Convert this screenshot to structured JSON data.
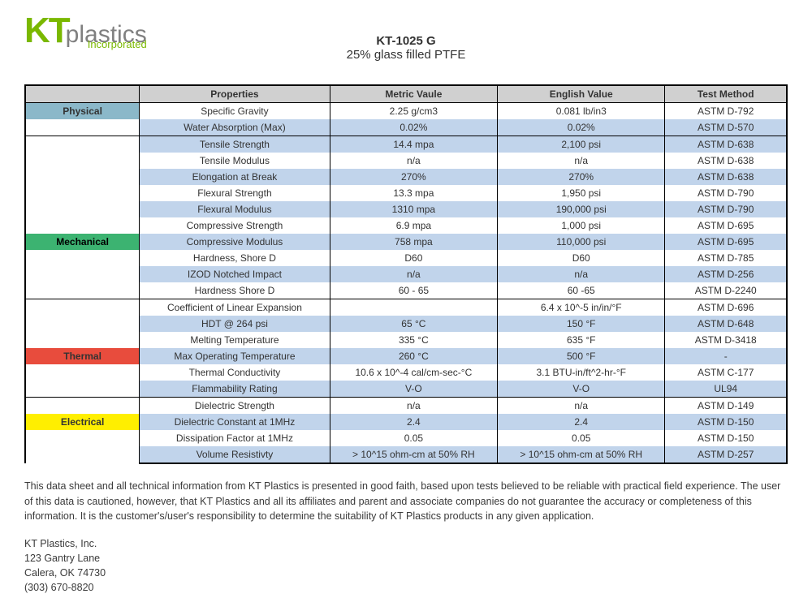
{
  "logo": {
    "kt": "KT",
    "plastics": "plastics",
    "inc": "Incorporated"
  },
  "title": {
    "line1": "KT-1025 G",
    "line2": "25% glass filled PTFE"
  },
  "headers": {
    "properties": "Properties",
    "metric": "Metric Vaule",
    "english": "English Value",
    "method": "Test Method"
  },
  "categories": {
    "physical": "Physical",
    "mechanical": "Mechanical",
    "thermal": "Thermal",
    "electrical": "Electrical"
  },
  "colors": {
    "physical": "#8bb8c9",
    "mechanical": "#3cb371",
    "thermal": "#e84c3d",
    "electrical": "#ffef00",
    "row_even": "#c1d4eb",
    "row_odd": "#ffffff",
    "header_bg": "#d0d0d0",
    "border": "#000000"
  },
  "rows": {
    "r0": {
      "prop": "Specific Gravity",
      "mv": "2.25 g/cm3",
      "ev": "0.081 lb/in3",
      "tm": "ASTM D-792"
    },
    "r1": {
      "prop": "Water Absorption (Max)",
      "mv": "0.02%",
      "ev": "0.02%",
      "tm": "ASTM D-570"
    },
    "r2": {
      "prop": "Tensile Strength",
      "mv": "14.4 mpa",
      "ev": "2,100 psi",
      "tm": "ASTM D-638"
    },
    "r3": {
      "prop": "Tensile Modulus",
      "mv": "n/a",
      "ev": "n/a",
      "tm": "ASTM D-638"
    },
    "r4": {
      "prop": "Elongation at Break",
      "mv": "270%",
      "ev": "270%",
      "tm": "ASTM D-638"
    },
    "r5": {
      "prop": "Flexural Strength",
      "mv": "13.3 mpa",
      "ev": "1,950 psi",
      "tm": "ASTM D-790"
    },
    "r6": {
      "prop": "Flexural Modulus",
      "mv": "1310 mpa",
      "ev": "190,000 psi",
      "tm": "ASTM D-790"
    },
    "r7": {
      "prop": "Compressive Strength",
      "mv": "6.9 mpa",
      "ev": "1,000 psi",
      "tm": "ASTM D-695"
    },
    "r8": {
      "prop": "Compressive Modulus",
      "mv": "758 mpa",
      "ev": "110,000 psi",
      "tm": "ASTM D-695"
    },
    "r9": {
      "prop": "Hardness, Shore D",
      "mv": "D60",
      "ev": "D60",
      "tm": "ASTM D-785"
    },
    "r10": {
      "prop": "IZOD Notched Impact",
      "mv": "n/a",
      "ev": "n/a",
      "tm": "ASTM D-256"
    },
    "r11": {
      "prop": "Hardness Shore D",
      "mv": "60 - 65",
      "ev": "60 -65",
      "tm": "ASTM D-2240"
    },
    "r12": {
      "prop": "Coefficient of Linear Expansion",
      "mv": "",
      "ev": "6.4 x 10^-5 in/in/°F",
      "tm": "ASTM D-696"
    },
    "r13": {
      "prop": "HDT @ 264 psi",
      "mv": "65 °C",
      "ev": "150 °F",
      "tm": "ASTM D-648"
    },
    "r14": {
      "prop": "Melting Temperature",
      "mv": "335 °C",
      "ev": "635 °F",
      "tm": "ASTM D-3418"
    },
    "r15": {
      "prop": "Max Operating Temperature",
      "mv": "260 °C",
      "ev": "500 °F",
      "tm": "-"
    },
    "r16": {
      "prop": "Thermal Conductivity",
      "mv": "10.6 x 10^-4 cal/cm-sec-°C",
      "ev": "3.1 BTU-in/ft^2-hr-°F",
      "tm": "ASTM C-177"
    },
    "r17": {
      "prop": "Flammability Rating",
      "mv": "V-O",
      "ev": "V-O",
      "tm": "UL94"
    },
    "r18": {
      "prop": "Dielectric Strength",
      "mv": "n/a",
      "ev": "n/a",
      "tm": "ASTM D-149"
    },
    "r19": {
      "prop": "Dielectric Constant at 1MHz",
      "mv": "2.4",
      "ev": "2.4",
      "tm": "ASTM D-150"
    },
    "r20": {
      "prop": "Dissipation Factor at 1MHz",
      "mv": "0.05",
      "ev": "0.05",
      "tm": "ASTM D-150"
    },
    "r21": {
      "prop": "Volume Resistivty",
      "mv": "> 10^15 ohm-cm at 50% RH",
      "ev": "> 10^15 ohm-cm at 50% RH",
      "tm": "ASTM D-257"
    }
  },
  "disclaimer": "This data sheet and all technical information from KT Plastics is presented in good faith, based upon tests believed to be reliable with practical field experience. The user of this data is cautioned, however, that KT Plastics and all its affiliates and parent and associate companies do not guarantee the accuracy or completeness of this information. It is the customer's/user's responsibility to determine the suitability of KT Plastics products  in any given application.",
  "contact": {
    "name": "KT Plastics, Inc.",
    "addr1": "123 Gantry Lane",
    "addr2": "Calera, OK 74730",
    "phone": "(303) 670-8820"
  }
}
